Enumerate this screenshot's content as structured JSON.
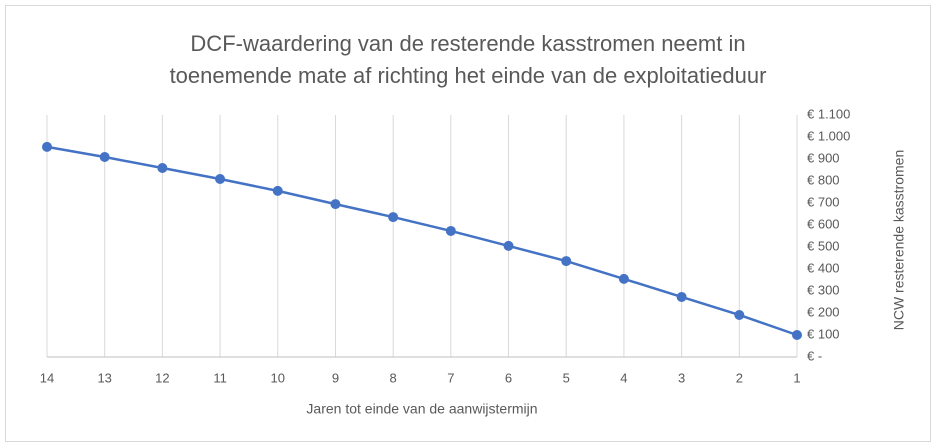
{
  "chart_data": {
    "type": "line",
    "title": [
      "DCF-waardering van de resterende kasstromen neemt in",
      "toenemende mate af richting het einde van de exploitatieduur"
    ],
    "x_label": "Jaren tot einde van de aanwijstermijn",
    "y_label": "NCW resterende kasstromen",
    "categories": [
      "14",
      "13",
      "12",
      "11",
      "10",
      "9",
      "8",
      "7",
      "6",
      "5",
      "4",
      "3",
      "2",
      "1"
    ],
    "series": [
      {
        "name": "NCW resterende kasstromen",
        "color": "#4472c4",
        "values": [
          955,
          909,
          859,
          809,
          755,
          695,
          636,
          573,
          505,
          436,
          355,
          273,
          191,
          100
        ]
      }
    ],
    "ylim": [
      0,
      1100
    ],
    "yticks": [
      {
        "value": 0,
        "label": "€ -"
      },
      {
        "value": 100,
        "label": "€ 100"
      },
      {
        "value": 200,
        "label": "€ 200"
      },
      {
        "value": 300,
        "label": "€ 300"
      },
      {
        "value": 400,
        "label": "€ 400"
      },
      {
        "value": 500,
        "label": "€ 500"
      },
      {
        "value": 600,
        "label": "€ 600"
      },
      {
        "value": 700,
        "label": "€ 700"
      },
      {
        "value": 800,
        "label": "€ 800"
      },
      {
        "value": 900,
        "label": "€ 900"
      },
      {
        "value": 1000,
        "label": "€ 1.000"
      },
      {
        "value": 1100,
        "label": "€ 1.100"
      }
    ],
    "y_axis_side": "right",
    "grid": "vertical"
  }
}
